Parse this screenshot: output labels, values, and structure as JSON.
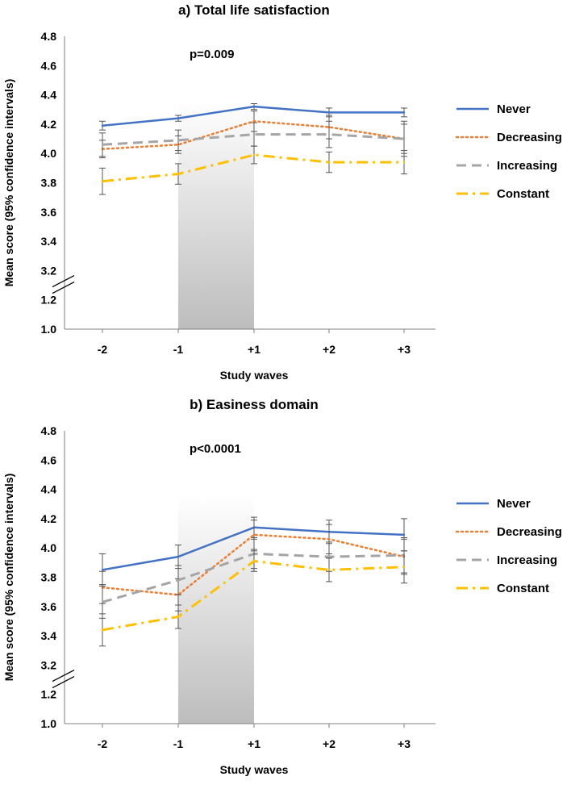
{
  "chart_data": [
    {
      "type": "line",
      "title": "a) Total life satisfaction",
      "annotation": "p=0.009",
      "xlabel": "Study waves",
      "ylabel": "Mean score (95% confidence intervals)",
      "categories": [
        "-2",
        "-1",
        "+1",
        "+2",
        "+3"
      ],
      "y_ticks": [
        "1.0",
        "1.2",
        "3.2",
        "3.4",
        "3.6",
        "3.8",
        "4.0",
        "4.2",
        "4.4",
        "4.6",
        "4.8"
      ],
      "axis_break": "between 1.2 and 3.2",
      "shaded_interval": [
        "-1",
        "+1"
      ],
      "legend_position": "right",
      "series": [
        {
          "name": "Never",
          "style": "solid",
          "color": "#4472C4",
          "values": [
            4.19,
            4.24,
            4.32,
            4.28,
            4.28
          ],
          "ci_low": [
            4.16,
            4.22,
            4.3,
            4.25,
            4.25
          ],
          "ci_high": [
            4.22,
            4.26,
            4.34,
            4.31,
            4.31
          ]
        },
        {
          "name": "Decreasing",
          "style": "dotted",
          "color": "#ED7D31",
          "values": [
            4.03,
            4.06,
            4.22,
            4.18,
            4.1
          ],
          "ci_low": [
            3.97,
            4.0,
            4.15,
            4.1,
            4.0
          ],
          "ci_high": [
            4.09,
            4.12,
            4.29,
            4.26,
            4.2
          ]
        },
        {
          "name": "Increasing",
          "style": "dashed",
          "color": "#A5A5A5",
          "values": [
            4.06,
            4.09,
            4.13,
            4.13,
            4.1
          ],
          "ci_low": [
            3.98,
            4.02,
            4.05,
            4.04,
            3.98
          ],
          "ci_high": [
            4.14,
            4.16,
            4.21,
            4.22,
            4.22
          ]
        },
        {
          "name": "Constant",
          "style": "dashdot",
          "color": "#FFC000",
          "values": [
            3.81,
            3.86,
            3.99,
            3.94,
            3.94
          ],
          "ci_low": [
            3.72,
            3.79,
            3.93,
            3.87,
            3.86
          ],
          "ci_high": [
            3.9,
            3.93,
            4.05,
            4.01,
            4.02
          ]
        }
      ]
    },
    {
      "type": "line",
      "title": "b) Easiness domain",
      "annotation": "p<0.0001",
      "xlabel": "Study waves",
      "ylabel": "Mean score (95% confidence intervals)",
      "categories": [
        "-2",
        "-1",
        "+1",
        "+2",
        "+3"
      ],
      "y_ticks": [
        "1.0",
        "1.2",
        "3.2",
        "3.4",
        "3.6",
        "3.8",
        "4.0",
        "4.2",
        "4.4",
        "4.6",
        "4.8"
      ],
      "axis_break": "between 1.2 and 3.2",
      "shaded_interval": [
        "-1",
        "+1"
      ],
      "legend_position": "right",
      "series": [
        {
          "name": "Never",
          "style": "solid",
          "color": "#4472C4",
          "values": [
            3.85,
            3.94,
            4.14,
            4.11,
            4.09
          ],
          "ci_low": [
            3.75,
            3.86,
            4.07,
            4.03,
            3.98
          ],
          "ci_high": [
            3.96,
            4.02,
            4.21,
            4.19,
            4.2
          ]
        },
        {
          "name": "Decreasing",
          "style": "dotted",
          "color": "#ED7D31",
          "values": [
            3.73,
            3.68,
            4.09,
            4.06,
            3.94
          ],
          "ci_low": [
            3.62,
            3.57,
            3.99,
            3.96,
            3.82
          ],
          "ci_high": [
            3.84,
            3.79,
            4.19,
            4.16,
            4.06
          ]
        },
        {
          "name": "Increasing",
          "style": "dashed",
          "color": "#A5A5A5",
          "values": [
            3.63,
            3.78,
            3.96,
            3.94,
            3.95
          ],
          "ci_low": [
            3.52,
            3.68,
            3.86,
            3.84,
            3.83
          ],
          "ci_high": [
            3.74,
            3.88,
            4.06,
            4.04,
            4.07
          ]
        },
        {
          "name": "Constant",
          "style": "dashdot",
          "color": "#FFC000",
          "values": [
            3.44,
            3.53,
            3.91,
            3.85,
            3.87
          ],
          "ci_low": [
            3.33,
            3.45,
            3.84,
            3.77,
            3.76
          ],
          "ci_high": [
            3.55,
            3.61,
            3.98,
            3.93,
            3.98
          ]
        }
      ]
    }
  ]
}
